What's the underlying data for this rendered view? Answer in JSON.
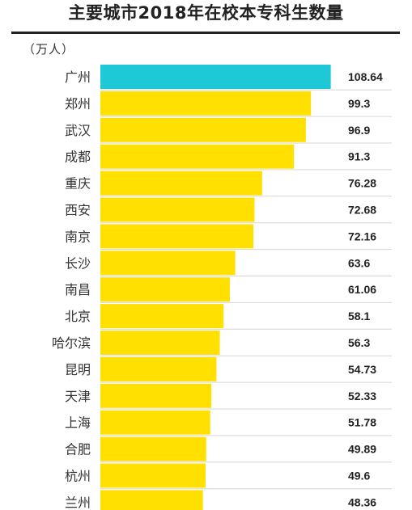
{
  "chart_data": {
    "type": "bar",
    "orientation": "horizontal",
    "title": "主要城市2018年在校本专科生数量",
    "unit": "（万人）",
    "categories": [
      "广州",
      "郑州",
      "武汉",
      "成都",
      "重庆",
      "西安",
      "南京",
      "长沙",
      "南昌",
      "北京",
      "哈尔滨",
      "昆明",
      "天津",
      "上海",
      "合肥",
      "杭州",
      "兰州"
    ],
    "values": [
      108.64,
      99.3,
      96.9,
      91.3,
      76.28,
      72.68,
      72.16,
      63.6,
      61.06,
      58.1,
      56.3,
      54.73,
      52.33,
      51.78,
      49.89,
      49.6,
      48.36
    ],
    "value_labels": [
      "108.64",
      "99.3",
      "96.9",
      "91.3",
      "76.28",
      "72.68",
      "72.16",
      "63.6",
      "61.06",
      "58.1",
      "56.3",
      "54.73",
      "52.33",
      "51.78",
      "49.89",
      "49.6",
      "48.36"
    ],
    "highlight_index": 0,
    "colors": {
      "highlight": "#1ec8d6",
      "bar": "#ffe000",
      "row_line": "#d6d6d6",
      "title_rule": "#222222"
    },
    "grid": true
  }
}
